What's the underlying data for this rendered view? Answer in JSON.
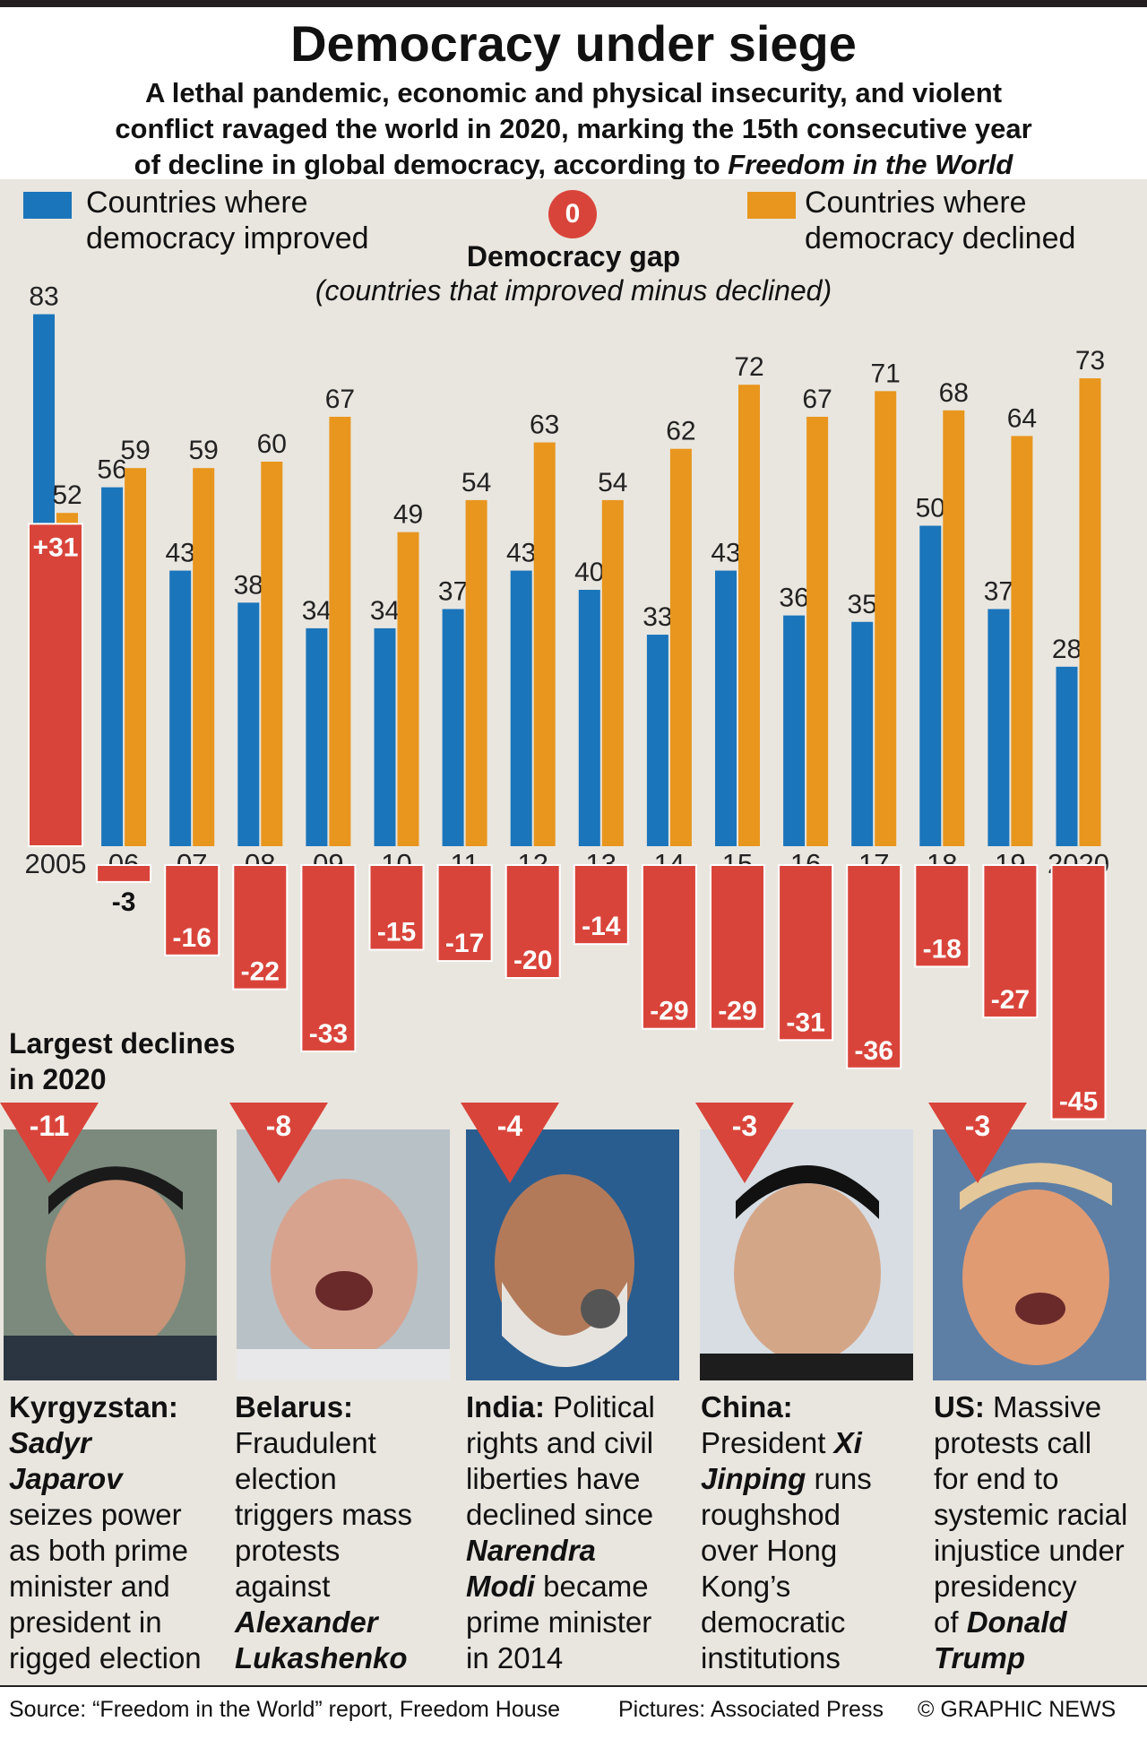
{
  "header": {
    "title": "Democracy under siege",
    "subtitle_line1": "A lethal pandemic, economic and physical insecurity, and violent",
    "subtitle_line2": "conflict ravaged the world in 2020, marking the 15th consecutive year",
    "subtitle_line3_prefix": "of decline in global democracy, according to ",
    "subtitle_line3_italic": "Freedom in the World"
  },
  "legend": {
    "improved_line1": "Countries where",
    "improved_line2": "democracy improved",
    "declined_line1": "Countries where",
    "declined_line2": "democracy declined",
    "gap_zero": "0",
    "gap_title": "Democracy gap",
    "gap_subtitle": "(countries that improved minus declined)"
  },
  "colors": {
    "improved": "#1b75bb",
    "declined": "#e8961e",
    "gap": "#d9443a",
    "background": "#e9e6df"
  },
  "chart_data": {
    "type": "bar",
    "categories": [
      "2005",
      "06",
      "07",
      "08",
      "09",
      "10",
      "11",
      "12",
      "13",
      "14",
      "15",
      "16",
      "17",
      "18",
      "19",
      "2020"
    ],
    "series": [
      {
        "name": "Countries where democracy improved",
        "values": [
          83,
          56,
          43,
          38,
          34,
          34,
          37,
          43,
          40,
          33,
          43,
          36,
          35,
          50,
          37,
          28
        ]
      },
      {
        "name": "Countries where democracy declined",
        "values": [
          52,
          59,
          59,
          60,
          67,
          49,
          54,
          63,
          54,
          62,
          72,
          67,
          71,
          68,
          64,
          73
        ]
      },
      {
        "name": "Democracy gap",
        "values": [
          31,
          -3,
          -16,
          -22,
          -33,
          -15,
          -17,
          -20,
          -14,
          -29,
          -29,
          -31,
          -36,
          -18,
          -27,
          -45
        ]
      }
    ],
    "gap_labels": [
      "+31",
      "-3",
      "-16",
      "-22",
      "-33",
      "-15",
      "-17",
      "-20",
      "-14",
      "-29",
      "-29",
      "-31",
      "-36",
      "-18",
      "-27",
      "-45"
    ],
    "title": "Democracy gap",
    "xlabel": "",
    "ylabel": ""
  },
  "declines": {
    "title_line1": "Largest declines",
    "title_line2": "in 2020",
    "items": [
      {
        "value": "-11",
        "country": "Kyrgyzstan:",
        "lines": [
          "Sadyr",
          "Japarov",
          "seizes power",
          "as both prime",
          "minister and",
          "president in",
          "rigged election"
        ]
      },
      {
        "value": "-8",
        "country": "Belarus:",
        "lines": [
          "Fraudulent",
          "election",
          "triggers mass",
          "protests",
          "against",
          "Alexander",
          "Lukashenko"
        ]
      },
      {
        "value": "-4",
        "country": "India:",
        "lines": [
          "Political",
          "rights and civil",
          "liberties have",
          "declined since",
          "Narendra",
          "Modi",
          "became",
          "prime minister",
          "in 2014"
        ]
      },
      {
        "value": "-3",
        "country": "China:",
        "lines": [
          "President",
          "Xi",
          "Jinping",
          "runs",
          "roughshod",
          "over Hong",
          "Kong’s",
          "democratic",
          "institutions"
        ]
      },
      {
        "value": "-3",
        "country": "US:",
        "lines": [
          "Massive",
          "protests call",
          "for end to",
          "systemic racial",
          "injustice under",
          "presidency",
          "of",
          "Donald",
          "Trump"
        ]
      }
    ]
  },
  "footer": {
    "source": "Source: “Freedom in the World” report, Freedom House",
    "pictures": "Pictures: Associated Press",
    "credit": "© GRAPHIC NEWS"
  }
}
